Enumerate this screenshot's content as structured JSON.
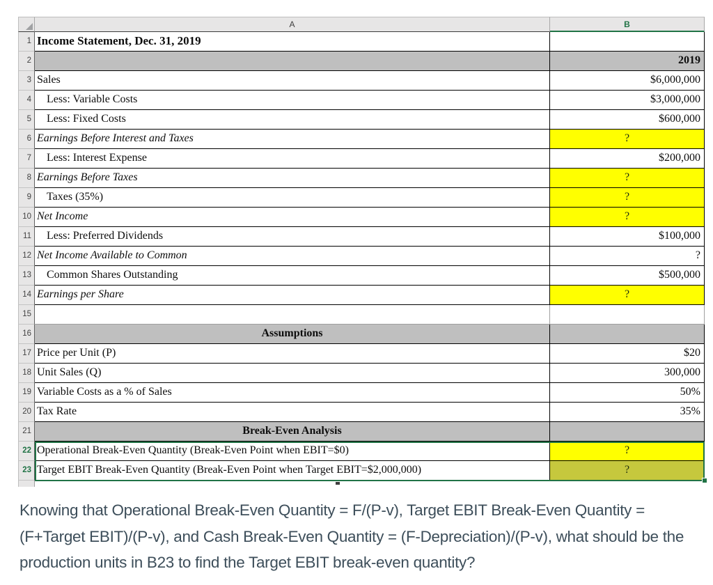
{
  "colors": {
    "selection_green": "#217346",
    "highlight_yellow": "#ffff00",
    "selected_cell_olive": "#c6c83d",
    "band_gray": "#bfbfbf"
  },
  "spreadsheet": {
    "column_headers": [
      "A",
      "B"
    ],
    "rows": [
      {
        "n": "1",
        "a": {
          "text": "Income Statement, Dec. 31, 2019",
          "style": "title"
        },
        "b": {
          "text": "",
          "style": ""
        }
      },
      {
        "n": "2",
        "a": {
          "text": "",
          "style": "gray"
        },
        "b": {
          "text": "2019",
          "style": "gray bold num"
        }
      },
      {
        "n": "3",
        "a": {
          "text": "Sales",
          "style": ""
        },
        "b": {
          "text": "$6,000,000",
          "style": "num"
        }
      },
      {
        "n": "4",
        "a": {
          "text": "Less: Variable Costs",
          "style": "indent"
        },
        "b": {
          "text": "$3,000,000",
          "style": "num"
        }
      },
      {
        "n": "5",
        "a": {
          "text": "Less: Fixed Costs",
          "style": "indent"
        },
        "b": {
          "text": "$600,000",
          "style": "num"
        }
      },
      {
        "n": "6",
        "a": {
          "text": "Earnings Before Interest and Taxes",
          "style": "italic"
        },
        "b": {
          "text": "?",
          "style": "q yellow"
        }
      },
      {
        "n": "7",
        "a": {
          "text": "Less: Interest Expense",
          "style": "indent"
        },
        "b": {
          "text": "$200,000",
          "style": "num"
        }
      },
      {
        "n": "8",
        "a": {
          "text": "Earnings Before Taxes",
          "style": "italic"
        },
        "b": {
          "text": "?",
          "style": "q yellow"
        }
      },
      {
        "n": "9",
        "a": {
          "text": "Taxes (35%)",
          "style": "indent"
        },
        "b": {
          "text": "?",
          "style": "q yellow"
        }
      },
      {
        "n": "10",
        "a": {
          "text": "Net Income",
          "style": "italic"
        },
        "b": {
          "text": "?",
          "style": "q yellow"
        }
      },
      {
        "n": "11",
        "a": {
          "text": "Less: Preferred Dividends",
          "style": "indent"
        },
        "b": {
          "text": "$100,000",
          "style": "num"
        }
      },
      {
        "n": "12",
        "a": {
          "text": "Net Income Available to Common",
          "style": "italic"
        },
        "b": {
          "text": "?",
          "style": "num"
        }
      },
      {
        "n": "13",
        "a": {
          "text": "Common Shares Outstanding",
          "style": "indent"
        },
        "b": {
          "text": "$500,000",
          "style": "num"
        }
      },
      {
        "n": "14",
        "a": {
          "text": "Earnings per Share",
          "style": "italic"
        },
        "b": {
          "text": "?",
          "style": "q yellow"
        }
      },
      {
        "n": "15",
        "a": {
          "text": "",
          "style": "light"
        },
        "b": {
          "text": "",
          "style": "light"
        }
      },
      {
        "n": "16",
        "a": {
          "text": "Assumptions",
          "style": "grayhead"
        },
        "b": {
          "text": "",
          "style": "gray"
        }
      },
      {
        "n": "17",
        "a": {
          "text": "Price per Unit (P)",
          "style": ""
        },
        "b": {
          "text": "$20",
          "style": "num"
        }
      },
      {
        "n": "18",
        "a": {
          "text": "Unit Sales (Q)",
          "style": ""
        },
        "b": {
          "text": "300,000",
          "style": "num"
        }
      },
      {
        "n": "19",
        "a": {
          "text": "Variable Costs as a % of Sales",
          "style": ""
        },
        "b": {
          "text": "50%",
          "style": "num"
        }
      },
      {
        "n": "20",
        "a": {
          "text": "Tax Rate",
          "style": ""
        },
        "b": {
          "text": "35%",
          "style": "num"
        }
      },
      {
        "n": "21",
        "a": {
          "text": "Break-Even Analysis",
          "style": "grayhead"
        },
        "b": {
          "text": "",
          "style": "gray"
        }
      },
      {
        "n": "22",
        "a": {
          "text": "Operational Break-Even Quantity (Break-Even Point when EBIT=$0)",
          "style": ""
        },
        "b": {
          "text": "?",
          "style": "q yellow"
        },
        "selected": true
      },
      {
        "n": "23",
        "a": {
          "text": "Target EBIT Break-Even Quantity (Break-Even Point when Target EBIT=$2,000,000)",
          "style": ""
        },
        "b": {
          "text": "?",
          "style": "q olive"
        },
        "selected": true
      }
    ]
  },
  "question": {
    "text": "Knowing that Operational Break-Even Quantity = F/(P-v), Target EBIT Break-Even Quantity = (F+Target EBIT)/(P-v), and Cash Break-Even Quantity = (F-Depreciation)/(P-v), what should be the production units in B23 to find the Target EBIT break-even quantity?"
  }
}
